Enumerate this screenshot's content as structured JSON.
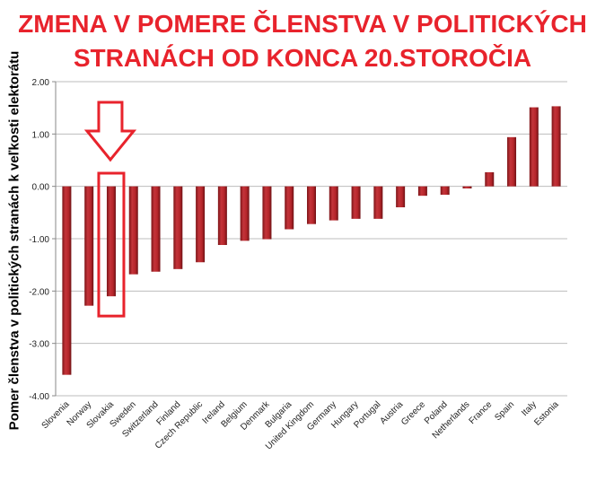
{
  "chart_data": {
    "type": "bar",
    "title_lines": [
      "ZMENA V POMERE ČLENSTVA V POLITICKÝCH",
      "STRANÁCH OD KONCA 20.STOROČIA"
    ],
    "ylabel": "Pomer členstva v politických stranách k veľkosti elektorátu",
    "xlabel": "",
    "ylim": [
      -4.0,
      2.0
    ],
    "yticks": [
      "2.00",
      "1.00",
      "0.00",
      "-1.00",
      "-2.00",
      "-3.00",
      "-4.00"
    ],
    "ytick_values": [
      2,
      1,
      0,
      -1,
      -2,
      -3,
      -4
    ],
    "grid": true,
    "legend": "none",
    "bar_color": "#b5252a",
    "highlight_color": "#e8232c",
    "highlight_category": "Slovakia",
    "categories": [
      "Slovenia",
      "Norway",
      "Slovakia",
      "Sweden",
      "Switzerland",
      "Finland",
      "Czech Republic",
      "Ireland",
      "Belgium",
      "Denmark",
      "Bulgaria",
      "United Kingdom",
      "Germany",
      "Hungary",
      "Portugal",
      "Austria",
      "Greece",
      "Poland",
      "Netherlands",
      "France",
      "Spain",
      "Italy",
      "Estonia"
    ],
    "values": [
      -3.6,
      -2.28,
      -2.1,
      -1.68,
      -1.63,
      -1.58,
      -1.45,
      -1.12,
      -1.04,
      -1.01,
      -0.82,
      -0.72,
      -0.65,
      -0.62,
      -0.62,
      -0.4,
      -0.18,
      -0.16,
      -0.04,
      0.27,
      0.94,
      1.51,
      1.53
    ]
  }
}
